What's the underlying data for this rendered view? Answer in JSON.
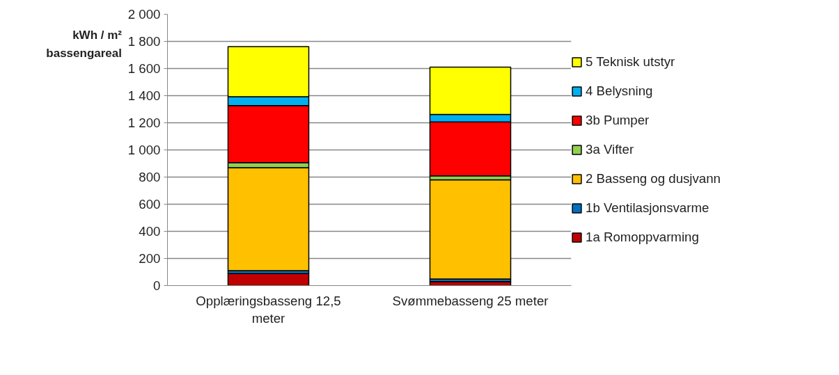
{
  "chart_data": {
    "type": "bar",
    "stacked": true,
    "ylabel": "kWh / m² bassengareal",
    "categories": [
      "Opplæringsbasseng 12,5 meter",
      "Svømmebasseng 25 meter"
    ],
    "series": [
      {
        "name": "1a Romoppvarming",
        "color": "#c00000",
        "values": [
          89,
          29
        ]
      },
      {
        "name": "1b Ventilasjonsvarme",
        "color": "#0070c0",
        "values": [
          21,
          20
        ]
      },
      {
        "name": "2 Basseng og dusjvann",
        "color": "#ffc000",
        "values": [
          759,
          731
        ]
      },
      {
        "name": "3a Vifter",
        "color": "#92d050",
        "values": [
          37,
          29
        ]
      },
      {
        "name": "3b Pumper",
        "color": "#ff0000",
        "values": [
          421,
          397
        ]
      },
      {
        "name": "4 Belysning",
        "color": "#00b0f0",
        "values": [
          65,
          56
        ]
      },
      {
        "name": "5 Teknisk utstyr",
        "color": "#ffff00",
        "values": [
          369,
          348
        ]
      }
    ],
    "ylim": [
      0,
      2000
    ],
    "yticks": [
      0,
      200,
      400,
      600,
      800,
      {
        "value": 1000,
        "label": "1 000"
      },
      {
        "value": 1200,
        "label": "1 200"
      },
      {
        "value": 1400,
        "label": "1 400"
      },
      {
        "value": 1600,
        "label": "1 600"
      },
      {
        "value": 1800,
        "label": "1 800"
      },
      {
        "value": 2000,
        "label": "2 000"
      }
    ],
    "grid": "y",
    "legend": "right"
  }
}
